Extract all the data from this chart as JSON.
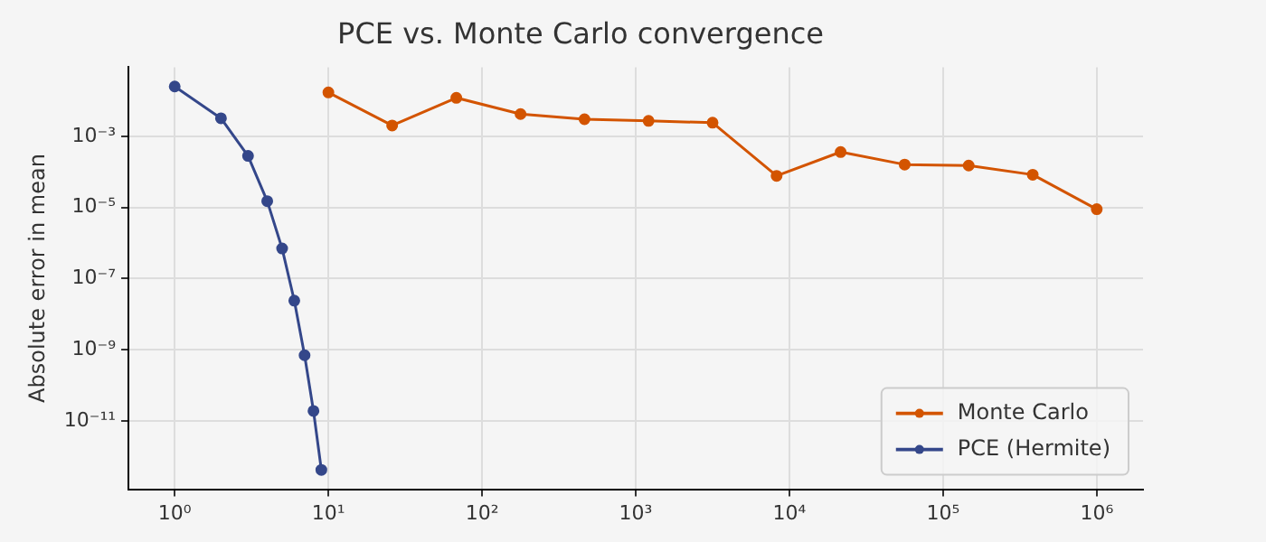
{
  "chart_data": {
    "type": "line",
    "title": "PCE vs. Monte Carlo convergence",
    "ylabel": "Absolute error in mean",
    "log": "xy",
    "grid": true,
    "legend": "bottom right",
    "marker": "circle",
    "line_style": "solid",
    "xlim": [
      0.5,
      2000000
    ],
    "ylim": [
      1.2e-13,
      0.087
    ],
    "xticks": [
      {
        "value": 1,
        "label": "10⁰"
      },
      {
        "value": 10,
        "label": "10¹"
      },
      {
        "value": 100,
        "label": "10²"
      },
      {
        "value": 1000,
        "label": "10³"
      },
      {
        "value": 10000,
        "label": "10⁴"
      },
      {
        "value": 100000,
        "label": "10⁵"
      },
      {
        "value": 1000000,
        "label": "10⁶"
      }
    ],
    "yticks": [
      {
        "value": 1e-11,
        "label": "10⁻¹¹"
      },
      {
        "value": 1e-09,
        "label": "10⁻⁹"
      },
      {
        "value": 1e-07,
        "label": "10⁻⁷"
      },
      {
        "value": 1e-05,
        "label": "10⁻⁵"
      },
      {
        "value": 0.001,
        "label": "10⁻³"
      }
    ],
    "series": [
      {
        "name": "Monte Carlo",
        "color": "#d35400",
        "x": [
          10,
          26,
          68,
          178,
          464,
          1212,
          3162,
          8254,
          21544,
          56234,
          146780,
          383119,
          1000000
        ],
        "values": [
          0.017,
          0.002,
          0.012,
          0.0042,
          0.003,
          0.0027,
          0.0024,
          7.7e-05,
          0.00036,
          0.00016,
          0.00015,
          8.3e-05,
          8.9e-06
        ]
      },
      {
        "name": "PCE (Hermite)",
        "color": "#34478a",
        "x": [
          1,
          2,
          3,
          4,
          5,
          6,
          7,
          8,
          9
        ],
        "values": [
          0.025,
          0.0032,
          0.00028,
          1.5e-05,
          7e-07,
          2.4e-08,
          7e-10,
          1.9e-11,
          4.2e-13
        ]
      }
    ]
  }
}
